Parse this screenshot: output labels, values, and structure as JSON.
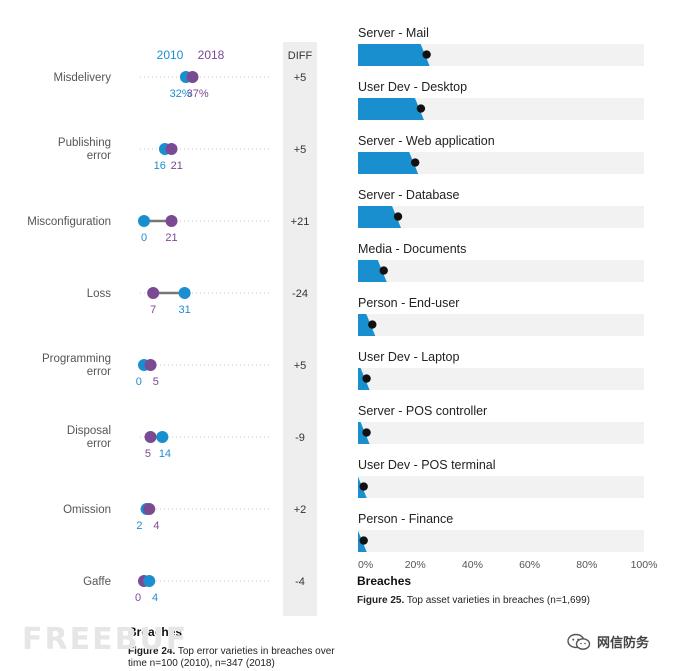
{
  "chart_data": [
    {
      "type": "dumbbell",
      "legend": [
        "2010",
        "2018"
      ],
      "diff_header": "DIFF",
      "x_label": "Breaches",
      "caption_bold": "Figure 24.",
      "caption_text": " Top error varieties in breaches over time n=100 (2010), n=347 (2018)",
      "colors": {
        "2010": "#1a8fcf",
        "2018": "#7a4a93",
        "connector": "#777777"
      },
      "categories": [
        {
          "label": [
            "Misdelivery"
          ],
          "v2010": 32,
          "v2018": 37,
          "t2010": "32%",
          "t2018": "37%",
          "diff": "+5"
        },
        {
          "label": [
            "Publishing",
            "error"
          ],
          "v2010": 16,
          "v2018": 21,
          "t2010": "16",
          "t2018": "21",
          "diff": "+5"
        },
        {
          "label": [
            "Misconfiguration"
          ],
          "v2010": 0,
          "v2018": 21,
          "t2010": "0",
          "t2018": "21",
          "diff": "+21"
        },
        {
          "label": [
            "Loss"
          ],
          "v2010": 31,
          "v2018": 7,
          "t2010": "31",
          "t2018": "7",
          "diff": "-24"
        },
        {
          "label": [
            "Programming",
            "error"
          ],
          "v2010": 0,
          "v2018": 5,
          "t2010": "0",
          "t2018": "5",
          "diff": "+5"
        },
        {
          "label": [
            "Disposal",
            "error"
          ],
          "v2010": 14,
          "v2018": 5,
          "t2010": "14",
          "t2018": "5",
          "diff": "-9"
        },
        {
          "label": [
            "Omission"
          ],
          "v2010": 2,
          "v2018": 4,
          "t2010": "2",
          "t2018": "4",
          "diff": "+2"
        },
        {
          "label": [
            "Gaffe"
          ],
          "v2010": 4,
          "v2018": 0,
          "t2010": "4",
          "t2018": "0",
          "diff": "-4"
        }
      ]
    },
    {
      "type": "bar",
      "orientation": "horizontal",
      "x_label": "Breaches",
      "caption_bold": "Figure 25.",
      "caption_text": " Top asset varieties in breaches (n=1,699)",
      "xlim": [
        0,
        100
      ],
      "xticks": [
        "0%",
        "20%",
        "40%",
        "60%",
        "80%",
        "100%"
      ],
      "colors": {
        "bar": "#1a8fcf",
        "track": "#f2f2f2",
        "point": "#111111"
      },
      "categories": [
        "Server - Mail",
        "User Dev - Desktop",
        "Server - Web application",
        "Server - Database",
        "Media - Documents",
        "Person - End-user",
        "User Dev - Laptop",
        "Server - POS controller",
        "User Dev - POS terminal",
        "Person - Finance"
      ],
      "values": [
        24,
        22,
        20,
        14,
        9,
        5,
        3,
        3,
        2,
        2
      ]
    }
  ],
  "watermark": "FREEBUF",
  "brand": {
    "label": "网信防务",
    "icon": "wechat-icon"
  }
}
